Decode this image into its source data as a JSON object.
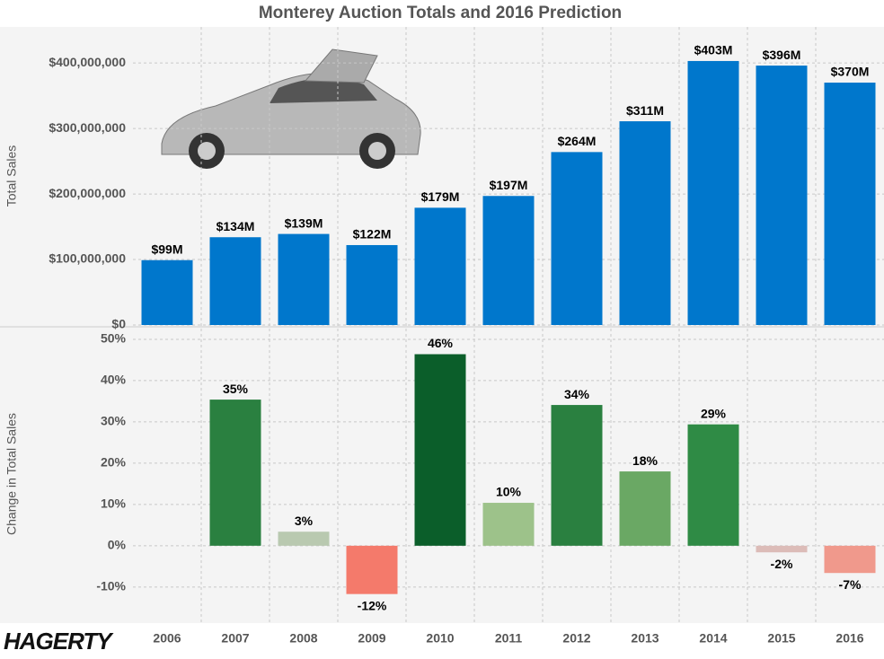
{
  "chart_data": [
    {
      "type": "bar",
      "title": "Monterey Auction Totals and 2016 Prediction",
      "y_label": "Total Sales",
      "categories": [
        "2006",
        "2007",
        "2008",
        "2009",
        "2010",
        "2011",
        "2012",
        "2013",
        "2014",
        "2015",
        "2016"
      ],
      "values": [
        99000000,
        134000000,
        139000000,
        122000000,
        179000000,
        197000000,
        264000000,
        311000000,
        403000000,
        396000000,
        370000000
      ],
      "value_labels": [
        "$99M",
        "$134M",
        "$139M",
        "$122M",
        "$179M",
        "$197M",
        "$264M",
        "$311M",
        "$403M",
        "$396M",
        "$370M"
      ],
      "color": "#0077cc",
      "ylim": [
        0,
        455000000
      ],
      "yticks": [
        {
          "value": 0,
          "label": "$0"
        },
        {
          "value": 100000000,
          "label": "$100,000,000"
        },
        {
          "value": 200000000,
          "label": "$200,000,000"
        },
        {
          "value": 300000000,
          "label": "$300,000,000"
        },
        {
          "value": 400000000,
          "label": "$400,000,000"
        }
      ],
      "grid": true
    },
    {
      "type": "bar",
      "y_label": "Change in Total Sales",
      "values": [
        null,
        35.4,
        3.4,
        -11.7,
        46.4,
        10.4,
        34.1,
        18.0,
        29.4,
        -1.6,
        -6.6
      ],
      "value_labels": [
        null,
        "35%",
        "3%",
        "-12%",
        "46%",
        "10%",
        "34%",
        "18%",
        "29%",
        "-2%",
        "-7%"
      ],
      "colors": [
        null,
        "#2a8040",
        "#b9c9b0",
        "#f47a6b",
        "#0b5e2a",
        "#9dc28a",
        "#2a8040",
        "#6aa864",
        "#2f8b45",
        "#dcbcb8",
        "#f0998c"
      ],
      "ylim": [
        -18.3,
        52.6
      ],
      "yticks": [
        {
          "value": -10,
          "label": "-10%"
        },
        {
          "value": 0,
          "label": "0%"
        },
        {
          "value": 10,
          "label": "10%"
        },
        {
          "value": 20,
          "label": "20%"
        },
        {
          "value": 30,
          "label": "30%"
        },
        {
          "value": 40,
          "label": "40%"
        },
        {
          "value": 50,
          "label": "50%"
        }
      ],
      "grid": true
    }
  ],
  "logo": "HAGERTY"
}
